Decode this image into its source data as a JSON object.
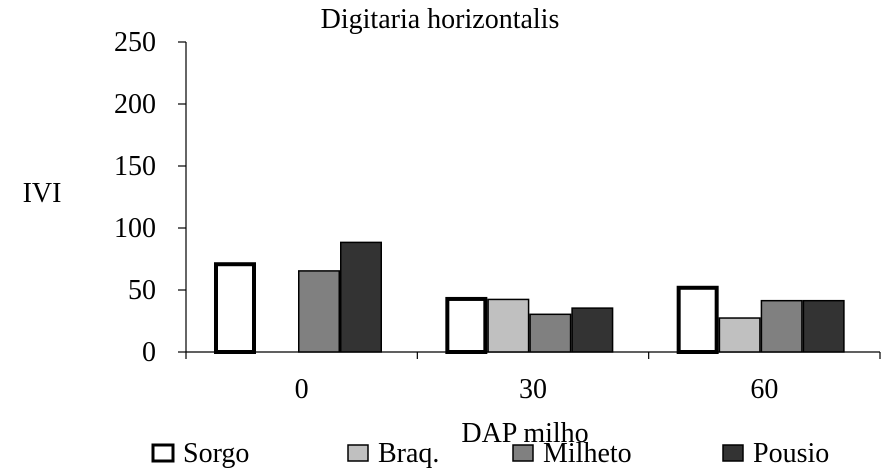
{
  "chart_data": {
    "type": "bar",
    "title": "Digitaria horizontalis",
    "xlabel": "DAP milho",
    "ylabel": "IVI",
    "categories": [
      "0",
      "30",
      "60"
    ],
    "ylim": [
      0,
      250
    ],
    "yticks": [
      0,
      50,
      100,
      150,
      200,
      250
    ],
    "grid": false,
    "legend_position": "bottom",
    "series": [
      {
        "name": "Sorgo",
        "values": [
          72,
          44,
          53
        ],
        "color": "#ffffff"
      },
      {
        "name": "Braq.",
        "values": [
          0,
          43,
          28
        ],
        "color": "#c0c0c0"
      },
      {
        "name": "Milheto",
        "values": [
          66,
          31,
          42
        ],
        "color": "#808080"
      },
      {
        "name": "Pousio",
        "values": [
          89,
          36,
          42
        ],
        "color": "#333333"
      }
    ]
  }
}
